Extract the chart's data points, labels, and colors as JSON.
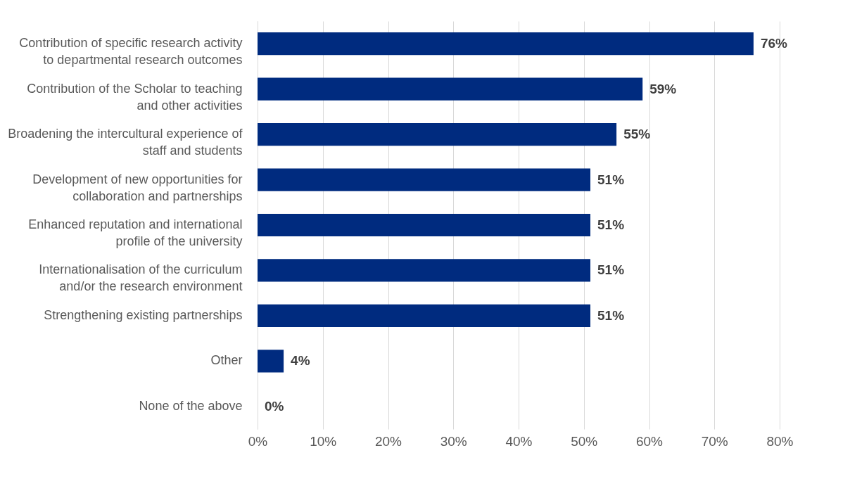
{
  "chart_data": {
    "type": "bar",
    "orientation": "horizontal",
    "categories": [
      "Contribution of specific research activity to departmental research outcomes",
      "Contribution of the Scholar to teaching and other activities",
      "Broadening the intercultural experience of staff and students",
      "Development of new opportunities for collaboration and partnerships",
      "Enhanced reputation and international profile of the university",
      "Internationalisation of the curriculum and/or the research environment",
      "Strengthening existing partnerships",
      "Other",
      "None of the above"
    ],
    "values": [
      76,
      59,
      55,
      51,
      51,
      51,
      51,
      4,
      0
    ],
    "value_labels": [
      "76%",
      "59%",
      "55%",
      "51%",
      "51%",
      "51%",
      "51%",
      "4%",
      "0%"
    ],
    "color": "#002b7f",
    "xlim": [
      0,
      80
    ],
    "xticks": [
      {
        "value": 0,
        "label": "0%"
      },
      {
        "value": 10,
        "label": "10%"
      },
      {
        "value": 20,
        "label": "20%"
      },
      {
        "value": 30,
        "label": "30%"
      },
      {
        "value": 40,
        "label": "40%"
      },
      {
        "value": 50,
        "label": "50%"
      },
      {
        "value": 60,
        "label": "60%"
      },
      {
        "value": 70,
        "label": "70%"
      },
      {
        "value": 80,
        "label": "80%"
      }
    ],
    "grid": "x"
  }
}
